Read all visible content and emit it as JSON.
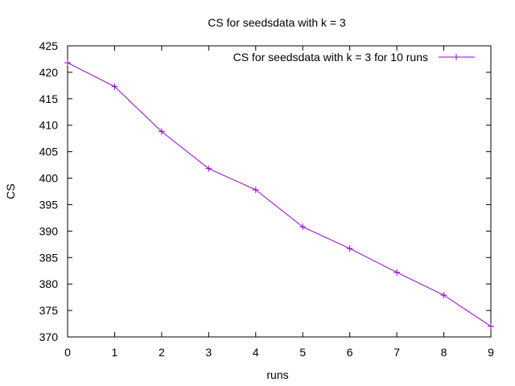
{
  "chart_data": {
    "type": "line",
    "title": "CS for seedsdata with k = 3",
    "xlabel": "runs",
    "ylabel": "CS",
    "xlim": [
      0,
      9
    ],
    "ylim": [
      370,
      425
    ],
    "xticks": [
      "0",
      "1",
      "2",
      "3",
      "4",
      "5",
      "6",
      "7",
      "8",
      "9"
    ],
    "yticks": [
      "370",
      "375",
      "380",
      "385",
      "390",
      "395",
      "400",
      "405",
      "410",
      "415",
      "420",
      "425"
    ],
    "grid": false,
    "legend_position": "top-right",
    "series": [
      {
        "name": "CS for seedsdata with k = 3 for 10 runs",
        "color": "#9400d3",
        "marker": "plus",
        "x": [
          0,
          1,
          2,
          3,
          4,
          5,
          6,
          7,
          8,
          9
        ],
        "y": [
          421.8,
          417.3,
          408.8,
          401.8,
          397.8,
          390.8,
          386.7,
          382.2,
          377.9,
          372.0
        ]
      }
    ]
  }
}
